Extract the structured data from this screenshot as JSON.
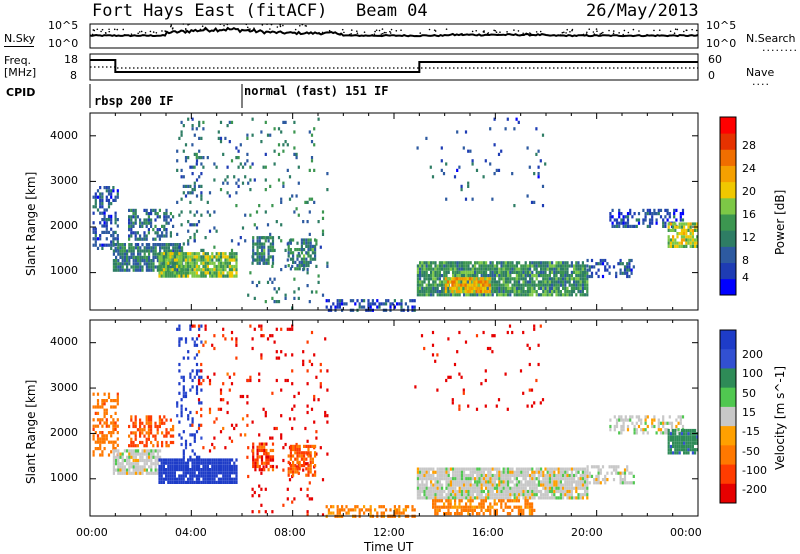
{
  "header": {
    "station": "Fort Hays East (fitACF)",
    "beam": "Beam 04",
    "date": "26/May/2013"
  },
  "left_labels": {
    "nsky": "N.Sky",
    "freq_line1": "Freq.",
    "freq_line2": "[MHz]",
    "cpid": "CPID"
  },
  "right_labels": {
    "nsearch": "N.Search",
    "nave": "Nave"
  },
  "noise_panel": {
    "left_ticks": [
      "10^5",
      "10^0"
    ],
    "right_ticks": [
      "10^5",
      "10^0"
    ]
  },
  "freq_panel": {
    "left_ticks": [
      "18",
      "8"
    ],
    "right_ticks": [
      "60",
      "0"
    ]
  },
  "cpid_panel": {
    "segments": [
      {
        "label": "rbsp 200 IF",
        "start": 0.0
      },
      {
        "label": "normal (fast) 151 IF",
        "start": 6.0
      }
    ]
  },
  "chart_data": [
    {
      "type": "heatmap",
      "title": "Power",
      "ylabel": "Slant Range [km]",
      "xlabel": "",
      "ylim": [
        180,
        4500
      ],
      "xlim": [
        0,
        24
      ],
      "y_ticks": [
        "1000",
        "2000",
        "3000",
        "4000"
      ],
      "colorbar": {
        "label": "Power [dB]",
        "ticks": [
          "4",
          "8",
          "12",
          "16",
          "20",
          "24",
          "28"
        ],
        "colors": [
          "#0000ff",
          "#1e3cb4",
          "#2d5aa0",
          "#2e7d64",
          "#3c9650",
          "#7dc846",
          "#f0c800",
          "#f5a000",
          "#f06e00",
          "#e63200",
          "#ff0000"
        ]
      },
      "regions": [
        {
          "t0": 0.1,
          "t1": 1.1,
          "r0": 1500,
          "r1": 2900,
          "dens": 0.45,
          "v": 7
        },
        {
          "t0": 0.9,
          "t1": 3.6,
          "r0": 1050,
          "r1": 1650,
          "dens": 0.85,
          "v": 10
        },
        {
          "t0": 1.5,
          "t1": 3.3,
          "r0": 1700,
          "r1": 2400,
          "dens": 0.5,
          "v": 9
        },
        {
          "t0": 2.7,
          "t1": 5.8,
          "r0": 900,
          "r1": 1450,
          "dens": 0.9,
          "v": 15
        },
        {
          "t0": 3.4,
          "t1": 4.4,
          "r0": 1500,
          "r1": 4400,
          "dens": 0.16,
          "v": 8
        },
        {
          "t0": 4.0,
          "t1": 6.2,
          "r0": 1500,
          "r1": 4400,
          "dens": 0.07,
          "v": 9
        },
        {
          "t0": 6.2,
          "t1": 9.4,
          "r0": 200,
          "r1": 4400,
          "dens": 0.06,
          "v": 10
        },
        {
          "t0": 6.4,
          "t1": 7.2,
          "r0": 1200,
          "r1": 1800,
          "dens": 0.65,
          "v": 11
        },
        {
          "t0": 7.8,
          "t1": 8.9,
          "r0": 1050,
          "r1": 1750,
          "dens": 0.6,
          "v": 11
        },
        {
          "t0": 9.3,
          "t1": 12.8,
          "r0": 200,
          "r1": 420,
          "dens": 0.45,
          "v": 6
        },
        {
          "t0": 12.9,
          "t1": 19.6,
          "r0": 500,
          "r1": 1250,
          "dens": 0.9,
          "v": 12
        },
        {
          "t0": 14.0,
          "t1": 15.8,
          "r0": 550,
          "r1": 900,
          "dens": 0.9,
          "v": 20
        },
        {
          "t0": 19.6,
          "t1": 21.5,
          "r0": 900,
          "r1": 1300,
          "dens": 0.45,
          "v": 7
        },
        {
          "t0": 20.5,
          "t1": 23.4,
          "r0": 2000,
          "r1": 2400,
          "dens": 0.5,
          "v": 6
        },
        {
          "t0": 22.8,
          "t1": 24.0,
          "r0": 1600,
          "r1": 2100,
          "dens": 0.85,
          "v": 17
        },
        {
          "t0": 12.8,
          "t1": 18.0,
          "r0": 2500,
          "r1": 4400,
          "dens": 0.03,
          "v": 7
        }
      ]
    },
    {
      "type": "heatmap",
      "title": "Velocity",
      "ylabel": "Slant Range [km]",
      "xlabel": "Time UT",
      "ylim": [
        180,
        4500
      ],
      "xlim": [
        0,
        24
      ],
      "x_ticks": [
        "00:00",
        "04:00",
        "08:00",
        "12:00",
        "16:00",
        "20:00",
        "00:00"
      ],
      "y_ticks": [
        "1000",
        "2000",
        "3000",
        "4000"
      ],
      "colorbar": {
        "label": "Velocity [m s^-1]",
        "ticks": [
          "200",
          "100",
          "50",
          "15",
          "-15",
          "-50",
          "-100",
          "-200"
        ],
        "colors": [
          "#1e3cc8",
          "#3250d2",
          "#2e8b57",
          "#50c850",
          "#c8c8c8",
          "#ffa000",
          "#ff7800",
          "#ff3c00",
          "#e60000"
        ]
      },
      "regions": [
        {
          "t0": 0.1,
          "t1": 1.1,
          "r0": 1500,
          "r1": 2900,
          "dens": 0.45,
          "v": -60
        },
        {
          "t0": 0.9,
          "t1": 2.8,
          "r0": 1150,
          "r1": 1650,
          "dens": 0.85,
          "v": 0
        },
        {
          "t0": 1.5,
          "t1": 3.3,
          "r0": 1700,
          "r1": 2400,
          "dens": 0.5,
          "v": -80
        },
        {
          "t0": 2.7,
          "t1": 5.8,
          "r0": 900,
          "r1": 1450,
          "dens": 0.9,
          "v": 230
        },
        {
          "t0": 3.4,
          "t1": 4.4,
          "r0": 1500,
          "r1": 4400,
          "dens": 0.18,
          "v": 200
        },
        {
          "t0": 4.0,
          "t1": 6.2,
          "r0": 1500,
          "r1": 4400,
          "dens": 0.07,
          "v": -150
        },
        {
          "t0": 6.2,
          "t1": 9.4,
          "r0": 200,
          "r1": 4400,
          "dens": 0.07,
          "v": -200
        },
        {
          "t0": 6.4,
          "t1": 7.2,
          "r0": 1200,
          "r1": 1800,
          "dens": 0.65,
          "v": -120
        },
        {
          "t0": 7.8,
          "t1": 8.9,
          "r0": 1050,
          "r1": 1750,
          "dens": 0.6,
          "v": -70
        },
        {
          "t0": 9.3,
          "t1": 12.8,
          "r0": 200,
          "r1": 420,
          "dens": 0.45,
          "v": -40
        },
        {
          "t0": 12.9,
          "t1": 19.6,
          "r0": 550,
          "r1": 1250,
          "dens": 0.9,
          "v": 0
        },
        {
          "t0": 13.5,
          "t1": 17.5,
          "r0": 250,
          "r1": 550,
          "dens": 0.6,
          "v": -45
        },
        {
          "t0": 19.6,
          "t1": 21.5,
          "r0": 900,
          "r1": 1300,
          "dens": 0.45,
          "v": 0
        },
        {
          "t0": 20.5,
          "t1": 23.4,
          "r0": 2000,
          "r1": 2400,
          "dens": 0.5,
          "v": 0
        },
        {
          "t0": 22.8,
          "t1": 24.0,
          "r0": 1600,
          "r1": 2100,
          "dens": 0.85,
          "v": 60
        },
        {
          "t0": 12.8,
          "t1": 18.0,
          "r0": 2500,
          "r1": 4400,
          "dens": 0.03,
          "v": -200
        }
      ]
    }
  ]
}
